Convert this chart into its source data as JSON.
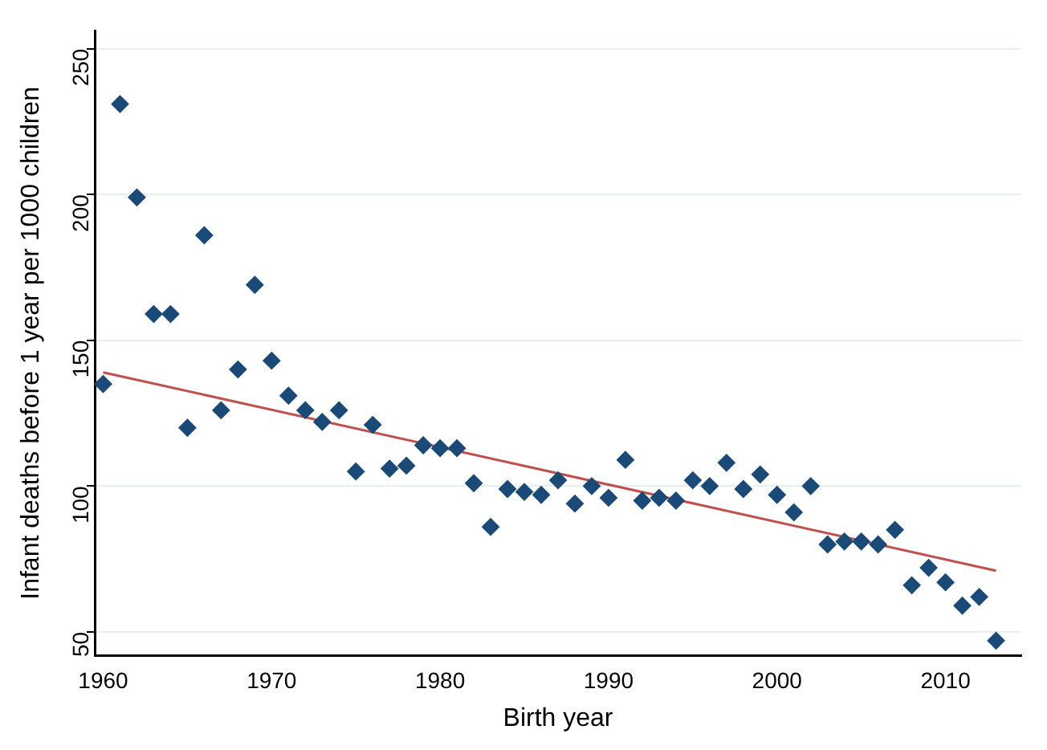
{
  "chart_data": {
    "type": "scatter",
    "xlabel": "Birth year",
    "ylabel": "Infant deaths before 1 year per 1000 children",
    "marker": "diamond",
    "grid": "y",
    "legend": false,
    "xlim": [
      1959.5,
      2014.5
    ],
    "xticks": [
      1960,
      1970,
      1980,
      1990,
      2000,
      2010
    ],
    "ylim": [
      42,
      256
    ],
    "yticks": [
      50,
      100,
      150,
      200,
      250
    ],
    "series": [
      {
        "type": "scatter",
        "color": "#1a4a78",
        "x": [
          1960,
          1961,
          1962,
          1963,
          1964,
          1965,
          1966,
          1967,
          1968,
          1969,
          1970,
          1971,
          1972,
          1973,
          1974,
          1975,
          1976,
          1977,
          1978,
          1979,
          1980,
          1981,
          1982,
          1983,
          1984,
          1985,
          1986,
          1987,
          1988,
          1989,
          1990,
          1991,
          1992,
          1993,
          1994,
          1995,
          1996,
          1997,
          1998,
          1999,
          2000,
          2001,
          2002,
          2003,
          2004,
          2005,
          2006,
          2007,
          2008,
          2009,
          2010,
          2011,
          2012,
          2013
        ],
        "values": [
          135,
          231,
          199,
          159,
          159,
          120,
          186,
          126,
          140,
          169,
          143,
          131,
          126,
          122,
          126,
          105,
          121,
          106,
          107,
          114,
          113,
          113,
          101,
          86,
          99,
          98,
          97,
          102,
          94,
          100,
          96,
          109,
          95,
          96,
          95,
          102,
          100,
          108,
          99,
          104,
          97,
          91,
          100,
          80,
          81,
          81,
          80,
          85,
          66,
          72,
          67,
          59,
          62,
          47
        ]
      },
      {
        "type": "line",
        "color": "#c0504d",
        "line_style": "solid",
        "marker": "none",
        "x": [
          1960,
          2013
        ],
        "values": [
          139,
          71
        ]
      }
    ]
  }
}
